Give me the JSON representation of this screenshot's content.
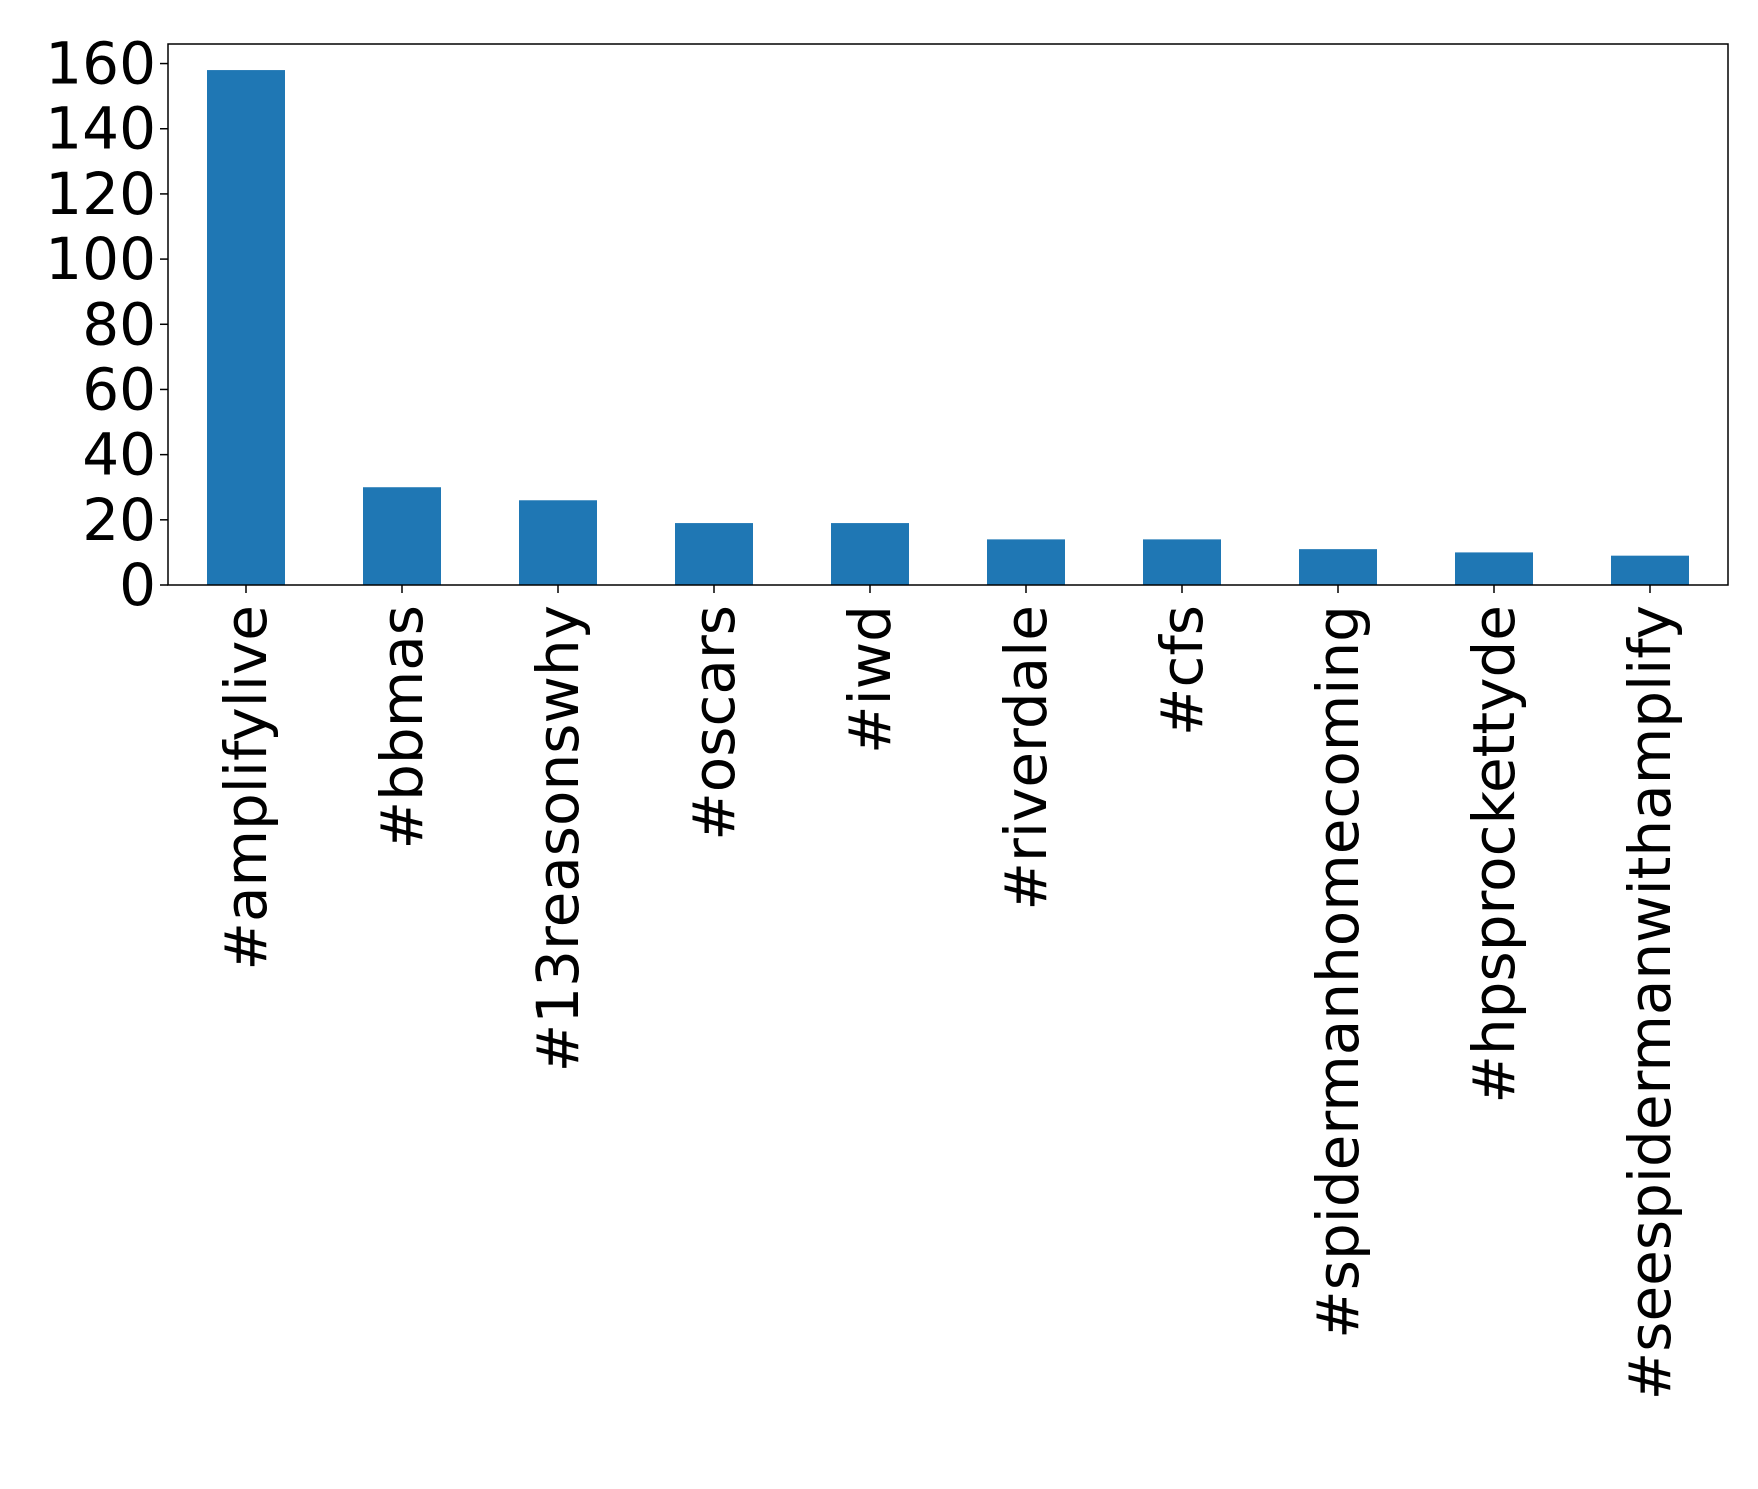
{
  "chart_data": {
    "type": "bar",
    "categories": [
      "#amplifylive",
      "#bbmas",
      "#13reasonswhy",
      "#oscars",
      "#iwd",
      "#riverdale",
      "#cfs",
      "#spidermanhomecoming",
      "#hpsprockettyde",
      "#seespidermanwithamplify"
    ],
    "values": [
      158,
      30,
      26,
      19,
      19,
      14,
      14,
      11,
      10,
      9
    ],
    "title": "",
    "xlabel": "",
    "ylabel": "",
    "ylim": [
      0,
      166
    ],
    "yticks": [
      0,
      20,
      40,
      60,
      80,
      100,
      120,
      140,
      160
    ],
    "bar_color": "#1f77b4",
    "grid": false,
    "legend": "none"
  }
}
